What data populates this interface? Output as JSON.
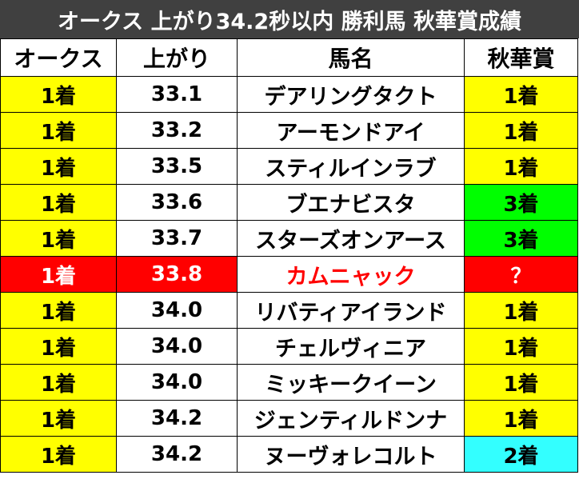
{
  "title": "オークス 上がり34.2秒以内 勝利馬 秋華賞成績",
  "headers": [
    "オークス",
    "上がり",
    "馬名",
    "秋華賞"
  ],
  "colors": {
    "title_bg": "#404040",
    "yellow": "#ffff00",
    "green": "#00ff00",
    "cyan": "#33ffff",
    "red": "#ff0000",
    "white": "#ffffff"
  },
  "rows": [
    {
      "oaks": "1着",
      "agari": "33.1",
      "horse": "デアリングタクト",
      "shuka": "1着",
      "shuka_color": "yellow",
      "highlight": false
    },
    {
      "oaks": "1着",
      "agari": "33.2",
      "horse": "アーモンドアイ",
      "shuka": "1着",
      "shuka_color": "yellow",
      "highlight": false
    },
    {
      "oaks": "1着",
      "agari": "33.5",
      "horse": "スティルインラブ",
      "shuka": "1着",
      "shuka_color": "yellow",
      "highlight": false
    },
    {
      "oaks": "1着",
      "agari": "33.6",
      "horse": "ブエナビスタ",
      "shuka": "3着",
      "shuka_color": "green",
      "highlight": false
    },
    {
      "oaks": "1着",
      "agari": "33.7",
      "horse": "スターズオンアース",
      "shuka": "3着",
      "shuka_color": "green",
      "highlight": false
    },
    {
      "oaks": "1着",
      "agari": "33.8",
      "horse": "カムニャック",
      "shuka": "？",
      "shuka_color": "red",
      "highlight": true
    },
    {
      "oaks": "1着",
      "agari": "34.0",
      "horse": "リバティアイランド",
      "shuka": "1着",
      "shuka_color": "yellow",
      "highlight": false
    },
    {
      "oaks": "1着",
      "agari": "34.0",
      "horse": "チェルヴィニア",
      "shuka": "1着",
      "shuka_color": "yellow",
      "highlight": false
    },
    {
      "oaks": "1着",
      "agari": "34.0",
      "horse": "ミッキークイーン",
      "shuka": "1着",
      "shuka_color": "yellow",
      "highlight": false
    },
    {
      "oaks": "1着",
      "agari": "34.2",
      "horse": "ジェンティルドンナ",
      "shuka": "1着",
      "shuka_color": "yellow",
      "highlight": false
    },
    {
      "oaks": "1着",
      "agari": "34.2",
      "horse": "ヌーヴォレコルト",
      "shuka": "2着",
      "shuka_color": "cyan",
      "highlight": false
    }
  ]
}
